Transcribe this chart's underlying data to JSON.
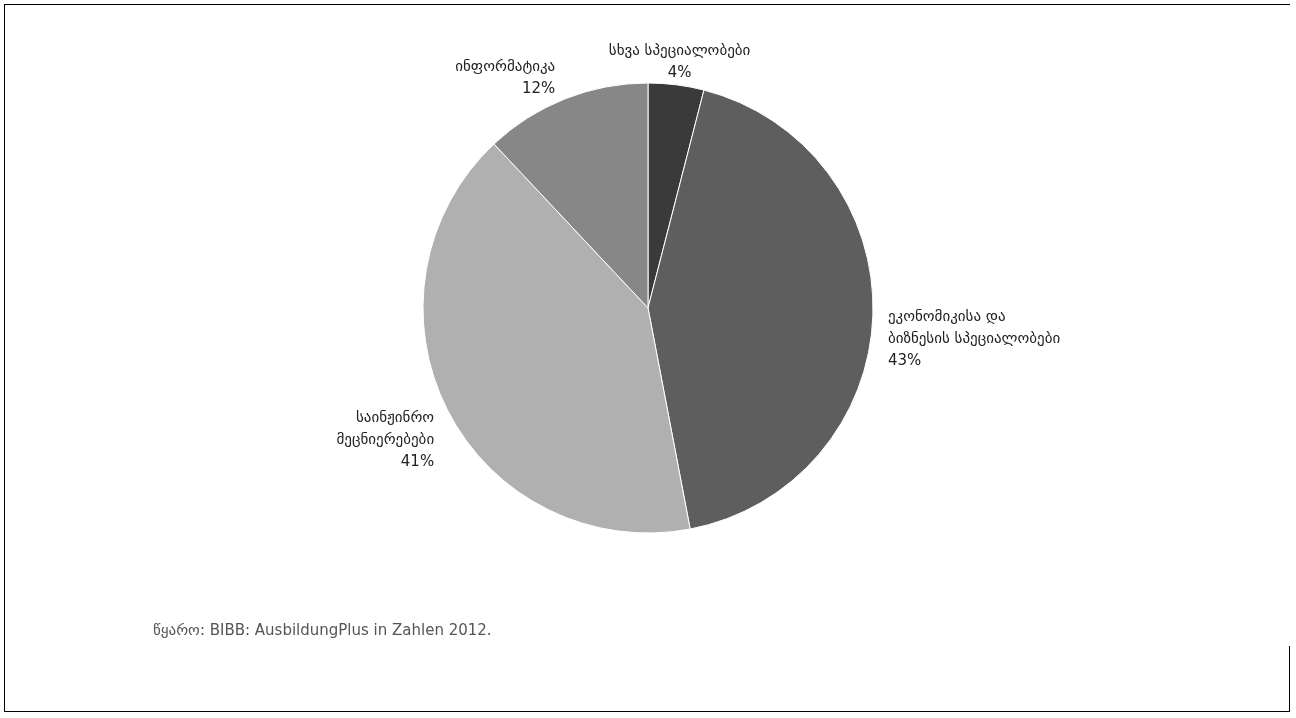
{
  "chart_data": {
    "type": "pie",
    "categories": [
      "სხვა სპეციალობები",
      "ეკონომიკისა და\nბიზნესის სპეციალობები",
      "საინჟინრო\nმეცნიერებები",
      "ინფორმატიკა"
    ],
    "values": [
      4,
      43,
      41,
      12
    ],
    "colors": [
      "#3a3a3a",
      "#5e5e5e",
      "#b0b0b0",
      "#878787"
    ],
    "value_labels": [
      "4%",
      "43%",
      "41%",
      "12%"
    ],
    "legend": false,
    "annotations": [
      "წყარო:     BIBB: AusbildungPlus in Zahlen 2012."
    ]
  }
}
